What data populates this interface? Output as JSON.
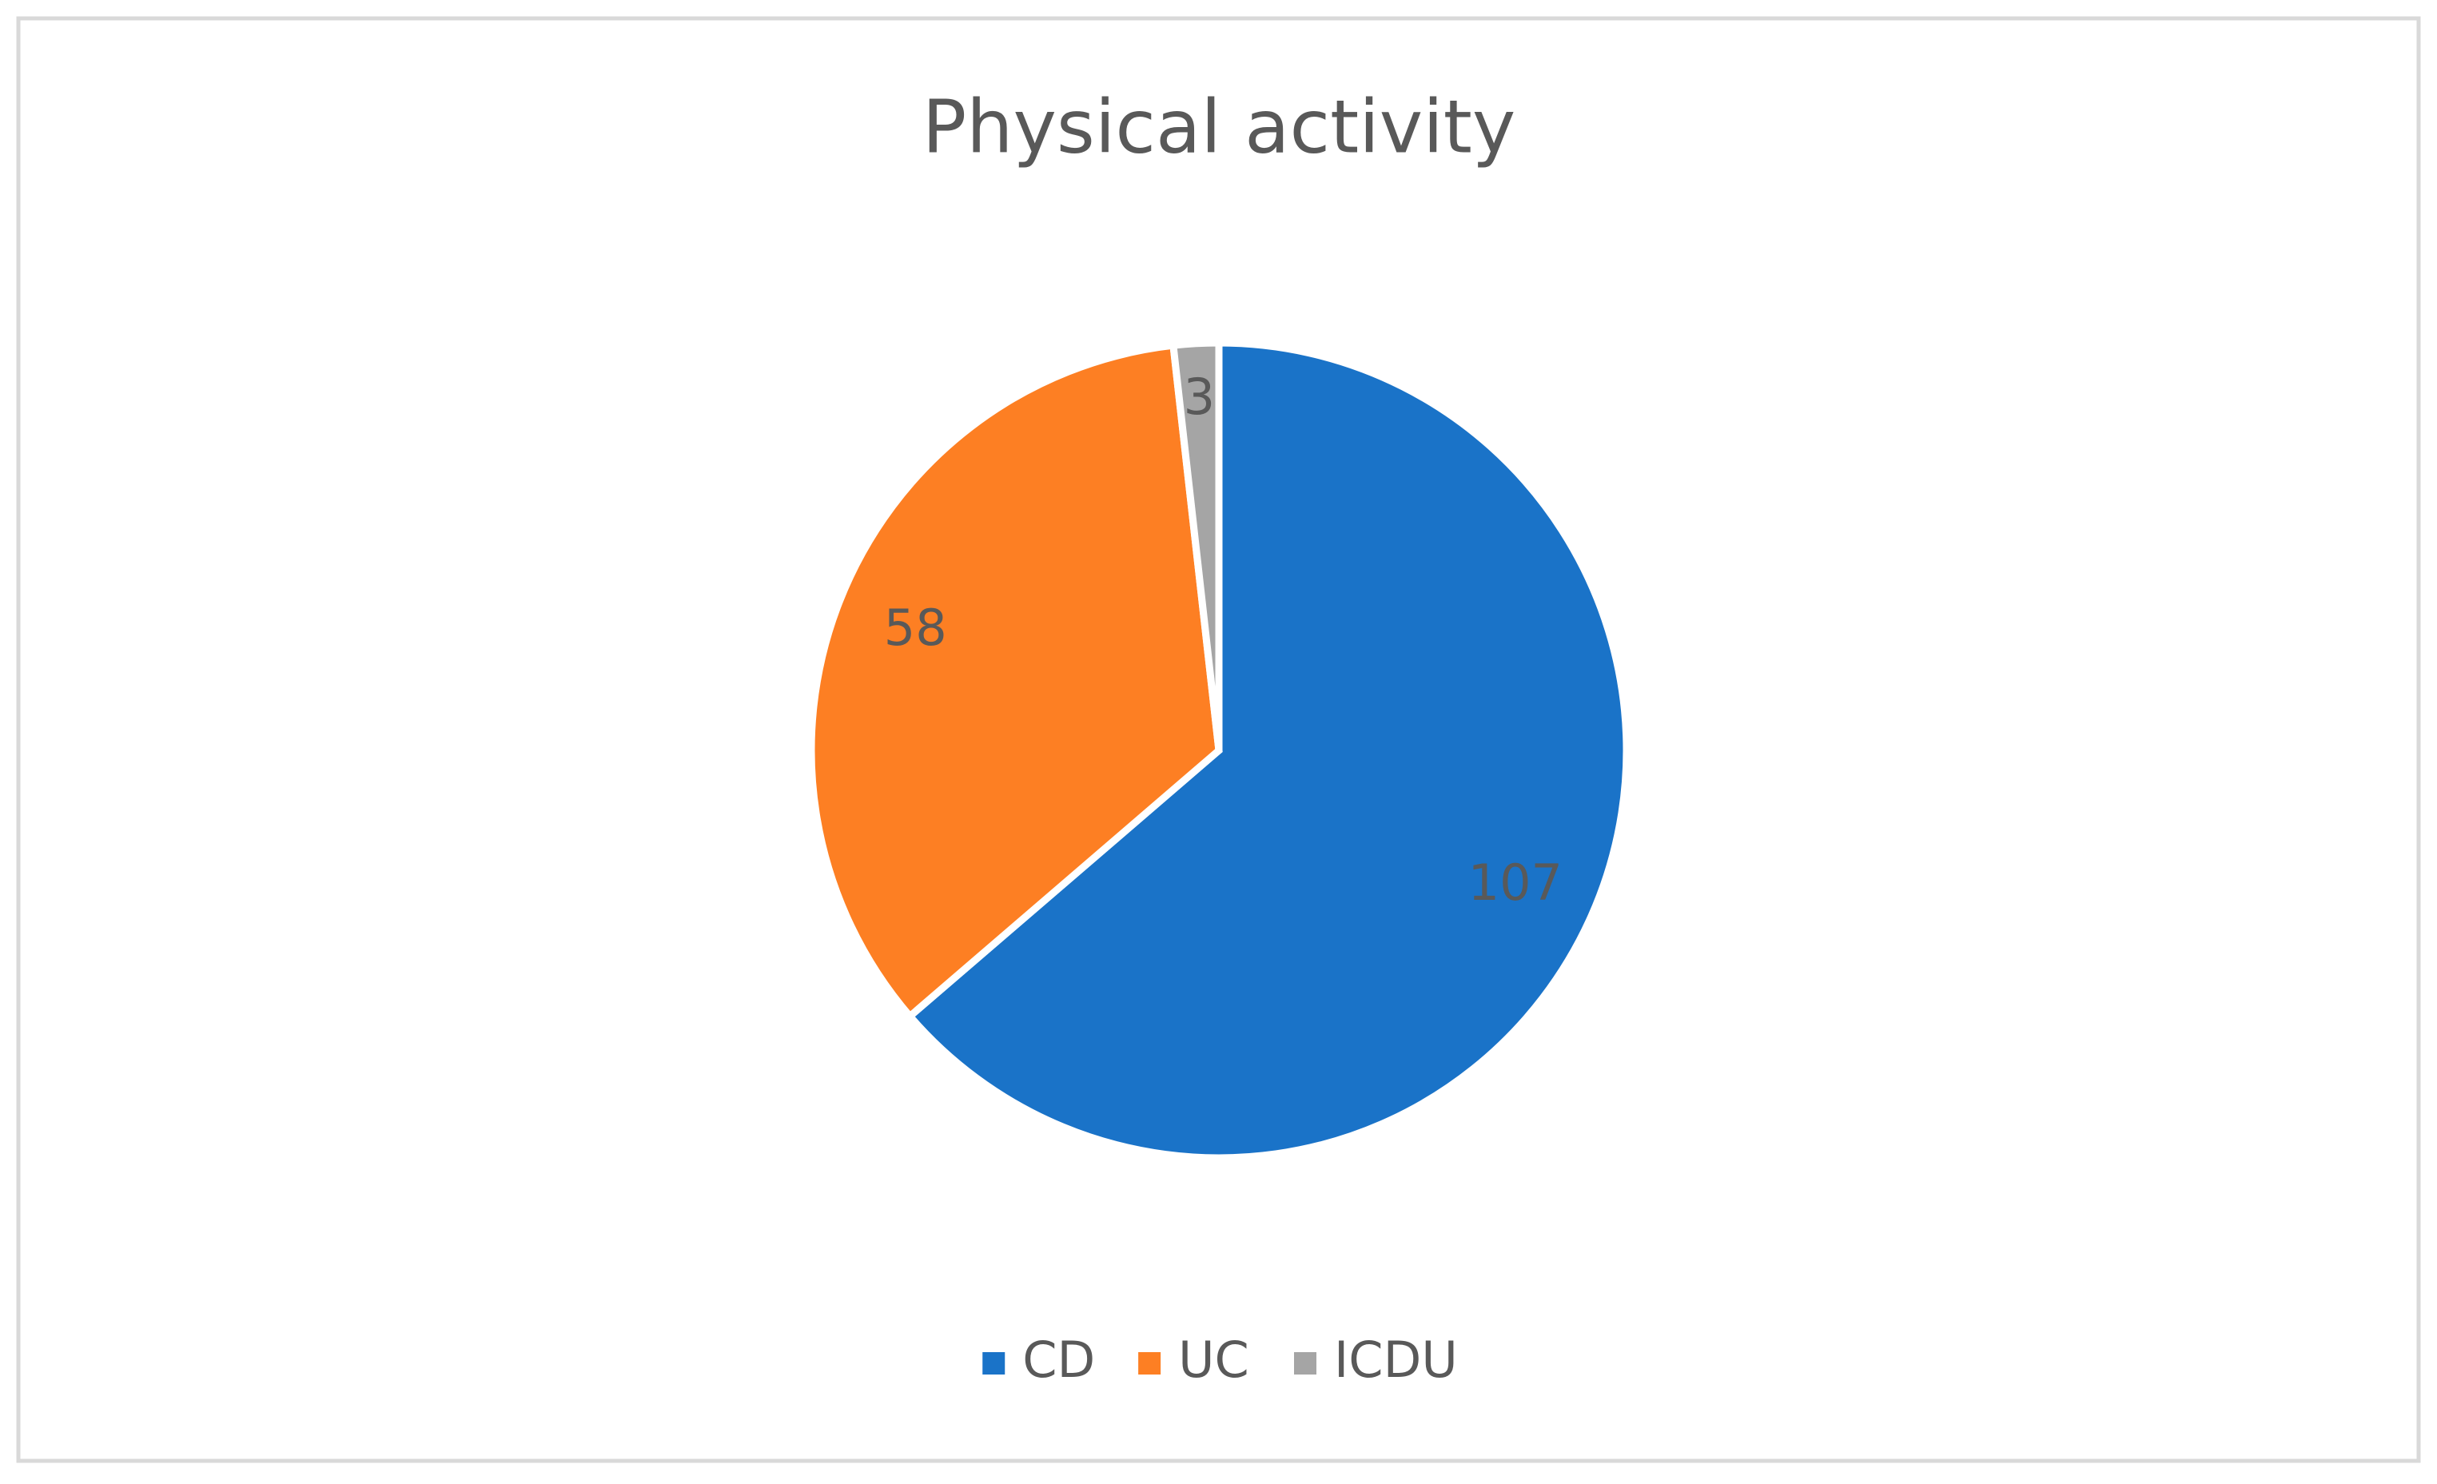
{
  "chart_data": {
    "type": "pie",
    "title": "Physical activity",
    "categories": [
      "CD",
      "UC",
      "ICDU"
    ],
    "values": [
      107,
      58,
      3
    ],
    "colors": [
      "#1a73c8",
      "#fd7f23",
      "#a5a5a5"
    ],
    "legend": "bottom"
  }
}
